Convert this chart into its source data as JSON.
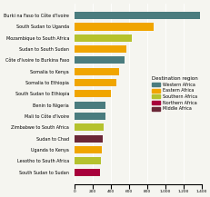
{
  "categories": [
    "Burki na Faso to Côte d'Ivoire",
    "South Sudan to Uganda",
    "Mozambique to South Africa",
    "Sudan to South Sudan",
    "Côte d'Ivoire to Burkina Faso",
    "Somalia to Kenya",
    "Somalia to Ethiopia",
    "South Sudan to Ethiopia",
    "Benin to Nigeria",
    "Mali to Côte d'Ivoire",
    "Zimbabwe to South Africa",
    "Sudan to Chad",
    "Uganda to Kenya",
    "Lesotho to South Africa",
    "South Sudan to Sudan"
  ],
  "values": [
    1380,
    870,
    630,
    570,
    545,
    490,
    460,
    400,
    340,
    335,
    315,
    305,
    295,
    285,
    275
  ],
  "colors": [
    "#4a7c7e",
    "#f0a500",
    "#b5c22e",
    "#f0a500",
    "#4a7c7e",
    "#f0a500",
    "#f0a500",
    "#f0a500",
    "#4a7c7e",
    "#4a7c7e",
    "#b5c22e",
    "#6b2737",
    "#f0a500",
    "#b5c22e",
    "#a8003b"
  ],
  "legend_labels": [
    "Western Africa",
    "Eastern Africa",
    "Southern Africa",
    "Northern Africa",
    "Middle Africa"
  ],
  "legend_colors": [
    "#4a7c7e",
    "#f0a500",
    "#b5c22e",
    "#a8003b",
    "#6b2737"
  ],
  "legend_title": "Destination region",
  "xlim": [
    0,
    1400
  ],
  "xtick_vals": [
    0,
    200,
    400,
    600,
    800,
    1000,
    1200,
    1400
  ],
  "xtick_labels": [
    "0",
    "200",
    "400",
    "600",
    "800",
    "1,000",
    "1,200",
    "1,400"
  ],
  "background_color": "#f5f5f0"
}
